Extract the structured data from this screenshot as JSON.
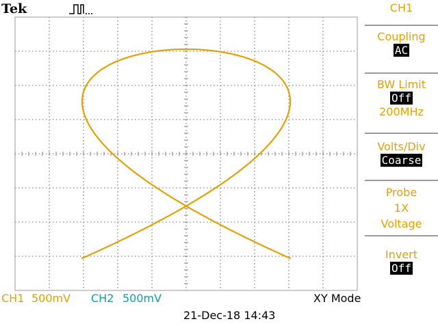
{
  "header": {
    "brand": "Tek"
  },
  "menu": {
    "title": "CH1",
    "items": [
      {
        "label": "Coupling",
        "value": "AC"
      },
      {
        "label": "BW Limit",
        "value": "Off",
        "sub": "200MHz"
      },
      {
        "label": "Volts/Div",
        "value": "Coarse"
      },
      {
        "label": "Probe",
        "line2": "1X",
        "line3": "Voltage"
      },
      {
        "label": "Invert",
        "value": "Off"
      }
    ]
  },
  "status": {
    "ch1_label": "CH1",
    "ch1_scale": "500mV",
    "ch2_label": "CH2",
    "ch2_scale": "500mV",
    "mode": "XY Mode",
    "datetime": "21-Dec-18 14:43"
  },
  "colors": {
    "ch1": "#e8a000",
    "ch2": "#00a6a6",
    "grid": "#9a9a9a"
  },
  "icons": {
    "trigger": "pulse-icon"
  }
}
